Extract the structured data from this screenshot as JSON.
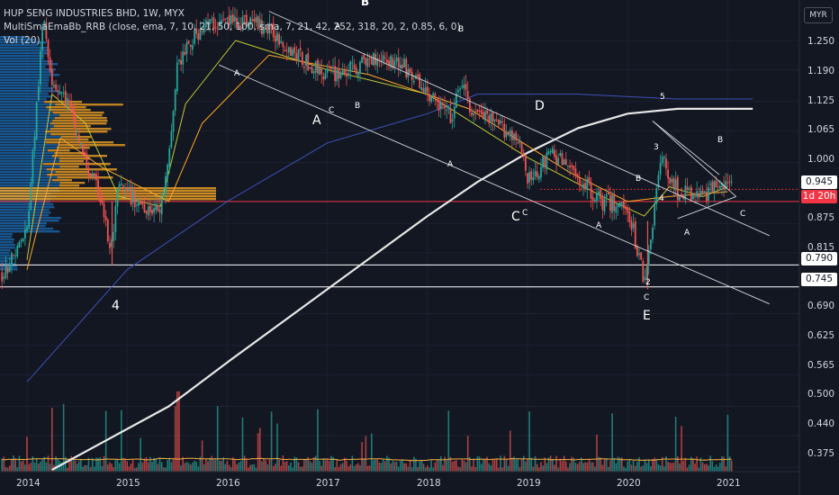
{
  "header": {
    "title_line": "HUP SENG INDUSTRIES BHD, 1W, MYX",
    "indicator_line": "MultiSmaEmaBb_RRB (close, ema, 7, 10, 21, 50, 100, sma, 7, 21, 42, 252, 318, 20, 2, 0.85, 6, 0)",
    "volume_line": "Vol (20)",
    "currency": "MYR"
  },
  "price_axis": {
    "ticks": [
      "1.250",
      "1.190",
      "1.125",
      "1.065",
      "1.000",
      "0.875",
      "0.815",
      "0.690",
      "0.625",
      "0.565",
      "0.500",
      "0.440",
      "0.375"
    ],
    "tags": {
      "current_price": "0.945",
      "countdown": "1d 20h",
      "support_1": "0.790",
      "support_2": "0.745"
    }
  },
  "time_axis": {
    "ticks": [
      "2014",
      "2015",
      "2016",
      "2017",
      "2018",
      "2019",
      "2020",
      "2021"
    ]
  },
  "annotations": {
    "small": [
      "B",
      "A",
      "B",
      "A",
      "C",
      "B",
      "C",
      "A",
      "A",
      "B",
      "4",
      "A",
      "C",
      "2",
      "C",
      "3",
      "5",
      "B"
    ],
    "large": [
      "4",
      "A",
      "D",
      "C",
      "E"
    ]
  },
  "colors": {
    "background": "#131722",
    "up_candle": "#26a69a",
    "down_candle": "#ef5350",
    "volume_profile_blue": "#1e88e5",
    "volume_profile_yellow": "#f9a825",
    "long_ma": "#e8e8e8",
    "mid_ma": "#3f51b5",
    "fast_ma_1": "#c0ca33",
    "fast_ma_2": "#ffa726",
    "resistance_line": "#f23645",
    "support_lines": "#ffffff"
  },
  "chart_data": {
    "type": "candlestick",
    "symbol": "HUP SENG INDUSTRIES BHD",
    "interval": "1W",
    "exchange": "MYX",
    "currency": "MYR",
    "x_range": [
      "2013-10",
      "2021-06"
    ],
    "y_range_main": [
      0.66,
      1.29
    ],
    "price_path": [
      [
        "2013-10",
        0.77
      ],
      [
        "2014-01",
        0.86
      ],
      [
        "2014-03",
        1.3
      ],
      [
        "2014-04",
        1.17
      ],
      [
        "2014-06",
        1.12
      ],
      [
        "2014-08",
        1.0
      ],
      [
        "2014-10",
        0.92
      ],
      [
        "2014-11",
        0.81
      ],
      [
        "2014-12",
        0.95
      ],
      [
        "2015-02",
        0.92
      ],
      [
        "2015-05",
        0.9
      ],
      [
        "2015-06",
        1.0
      ],
      [
        "2015-07",
        1.2
      ],
      [
        "2015-10",
        1.28
      ],
      [
        "2016-01",
        1.29
      ],
      [
        "2016-04",
        1.29
      ],
      [
        "2016-07",
        1.26
      ],
      [
        "2016-10",
        1.21
      ],
      [
        "2017-01",
        1.18
      ],
      [
        "2017-04",
        1.19
      ],
      [
        "2017-07",
        1.22
      ],
      [
        "2017-10",
        1.2
      ],
      [
        "2018-01",
        1.14
      ],
      [
        "2018-04",
        1.09
      ],
      [
        "2018-05",
        1.17
      ],
      [
        "2018-06",
        1.11
      ],
      [
        "2018-09",
        1.08
      ],
      [
        "2018-12",
        1.05
      ],
      [
        "2019-01",
        0.96
      ],
      [
        "2019-04",
        1.02
      ],
      [
        "2019-07",
        0.97
      ],
      [
        "2019-10",
        0.92
      ],
      [
        "2020-01",
        0.91
      ],
      [
        "2020-03",
        0.76
      ],
      [
        "2020-04",
        0.88
      ],
      [
        "2020-05",
        1.01
      ],
      [
        "2020-07",
        0.94
      ],
      [
        "2020-09",
        0.93
      ],
      [
        "2020-11",
        0.94
      ],
      [
        "2020-12",
        0.97
      ],
      [
        "2021-01",
        0.945
      ]
    ],
    "series": [
      {
        "name": "SMA 252",
        "values": [
          [
            "2014-04",
            0.37
          ],
          [
            "2015-06",
            0.5
          ],
          [
            "2016-01",
            0.59
          ],
          [
            "2017-01",
            0.74
          ],
          [
            "2018-01",
            0.89
          ],
          [
            "2018-07",
            0.96
          ],
          [
            "2019-01",
            1.02
          ],
          [
            "2019-07",
            1.07
          ],
          [
            "2020-01",
            1.1
          ],
          [
            "2020-07",
            1.11
          ],
          [
            "2021-04",
            1.11
          ]
        ]
      },
      {
        "name": "SMA 318",
        "values": [
          [
            "2014-01",
            0.55
          ],
          [
            "2015-01",
            0.78
          ],
          [
            "2016-01",
            0.92
          ],
          [
            "2017-01",
            1.04
          ],
          [
            "2018-01",
            1.1
          ],
          [
            "2018-07",
            1.14
          ],
          [
            "2019-07",
            1.14
          ],
          [
            "2020-07",
            1.13
          ],
          [
            "2021-04",
            1.13
          ]
        ]
      },
      {
        "name": "EMA 21",
        "values": [
          [
            "2014-01",
            0.8
          ],
          [
            "2014-04",
            1.14
          ],
          [
            "2014-08",
            1.08
          ],
          [
            "2014-12",
            0.93
          ],
          [
            "2015-05",
            0.91
          ],
          [
            "2015-08",
            1.12
          ],
          [
            "2016-02",
            1.25
          ],
          [
            "2017-01",
            1.19
          ],
          [
            "2018-01",
            1.14
          ],
          [
            "2019-01",
            1.01
          ],
          [
            "2019-10",
            0.93
          ],
          [
            "2020-03",
            0.89
          ],
          [
            "2020-06",
            0.95
          ],
          [
            "2020-10",
            0.93
          ],
          [
            "2021-01",
            0.95
          ]
        ]
      },
      {
        "name": "EMA 50",
        "values": [
          [
            "2014-01",
            0.78
          ],
          [
            "2014-05",
            1.05
          ],
          [
            "2014-10",
            0.99
          ],
          [
            "2015-06",
            0.92
          ],
          [
            "2015-10",
            1.08
          ],
          [
            "2016-06",
            1.22
          ],
          [
            "2017-06",
            1.18
          ],
          [
            "2018-06",
            1.11
          ],
          [
            "2019-06",
            0.98
          ],
          [
            "2020-01",
            0.92
          ],
          [
            "2020-06",
            0.93
          ],
          [
            "2021-01",
            0.94
          ]
        ]
      }
    ],
    "horizontal_levels": [
      {
        "price": 0.945,
        "label": "0.945"
      },
      {
        "price": 0.92,
        "label": ""
      },
      {
        "price": 0.79,
        "label": "0.790"
      },
      {
        "price": 0.745,
        "label": "0.745"
      }
    ],
    "trend_lines": [
      {
        "from": [
          "2015-12",
          1.2
        ],
        "to": [
          "2021-06",
          0.71
        ]
      },
      {
        "from": [
          "2016-06",
          1.31
        ],
        "to": [
          "2021-06",
          0.85
        ]
      },
      {
        "from": [
          "2020-04",
          1.085
        ],
        "to": [
          "2020-12",
          0.975
        ]
      },
      {
        "from": [
          "2020-04",
          1.085
        ],
        "to": [
          "2021-02",
          0.93
        ]
      },
      {
        "from": [
          "2020-07",
          0.885
        ],
        "to": [
          "2021-02",
          0.93
        ]
      }
    ],
    "volume": {
      "label": "Vol (20)",
      "note": "weekly volume bars with 20-period average"
    }
  }
}
